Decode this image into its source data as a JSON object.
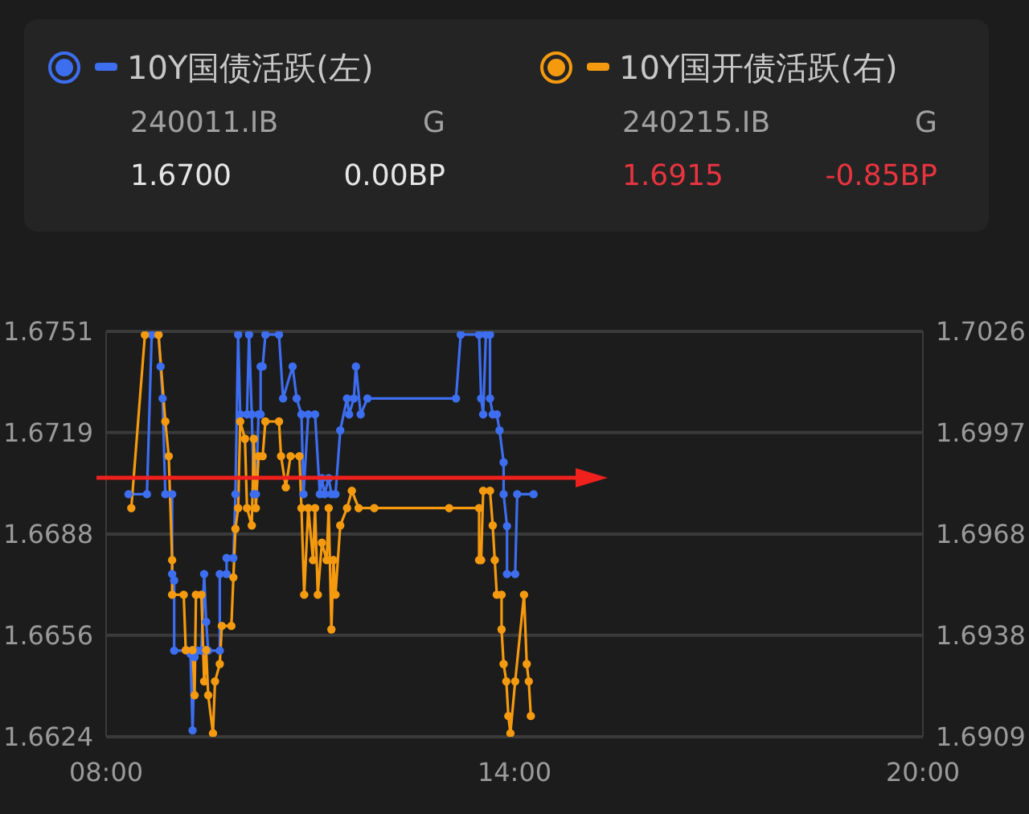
{
  "chart_data": {
    "type": "line",
    "legend": "top",
    "grid": "y",
    "marker": "circle",
    "line_style": "solid",
    "annotations": [
      "240011.IB",
      "G",
      "1.6700",
      "0.00BP",
      "240215.IB",
      "G",
      "1.6915",
      "-0.85BP"
    ],
    "xlim": [
      8,
      20
    ],
    "xticks": [
      {
        "value": 8,
        "label": "08:00"
      },
      {
        "value": 14,
        "label": "14:00"
      },
      {
        "value": 20,
        "label": "20:00"
      }
    ],
    "ylim": [
      1.6624,
      1.6751
    ],
    "yticks": [
      1.6624,
      {
        "value": 1.66558,
        "label": "1.6656"
      },
      {
        "value": 1.66875,
        "label": "1.6688"
      },
      {
        "value": 1.67193,
        "label": "1.6719"
      },
      1.6751
    ],
    "y2lim": [
      1.6909,
      1.7026
    ],
    "y2ticks": [
      1.6909,
      {
        "value": 1.69383,
        "label": "1.6938"
      },
      {
        "value": 1.69675,
        "label": "1.6968"
      },
      {
        "value": 1.69968,
        "label": "1.6997"
      },
      1.7026
    ],
    "series": [
      {
        "name": "10Y国债活跃(左)",
        "color": "#3d6ef0",
        "x": [
          8.33,
          8.6,
          8.67,
          8.77,
          8.8,
          8.83,
          8.87,
          8.97,
          8.97,
          9.0,
          9.0,
          9.2,
          9.24,
          9.27,
          9.3,
          9.34,
          9.4,
          9.44,
          9.47,
          9.5,
          9.67,
          9.67,
          9.77,
          9.77,
          9.87,
          9.9,
          9.94,
          9.97,
          10.07,
          10.1,
          10.14,
          10.17,
          10.2,
          10.24,
          10.27,
          10.27,
          10.3,
          10.34,
          10.54,
          10.6,
          10.74,
          10.8,
          10.87,
          10.9,
          10.97,
          11.07,
          11.14,
          11.17,
          11.21,
          11.27,
          11.31,
          11.37,
          11.44,
          11.54,
          11.57,
          11.64,
          11.67,
          11.74,
          11.84,
          13.14,
          13.21,
          13.48,
          13.51,
          13.54,
          13.58,
          13.64,
          13.64,
          13.68,
          13.74,
          13.78,
          13.84,
          13.84,
          13.89,
          13.89,
          14.01,
          14.04,
          14.28
        ],
        "values": [
          1.67,
          1.67,
          1.675,
          1.675,
          1.674,
          1.673,
          1.67,
          1.67,
          1.6675,
          1.6673,
          1.6651,
          1.6651,
          1.665,
          1.6626,
          1.6649,
          1.6651,
          1.6651,
          1.6675,
          1.666,
          1.6651,
          1.6651,
          1.6675,
          1.6675,
          1.668,
          1.668,
          1.67,
          1.675,
          1.6725,
          1.6725,
          1.675,
          1.6725,
          1.67,
          1.67,
          1.6725,
          1.6725,
          1.674,
          1.674,
          1.675,
          1.675,
          1.673,
          1.674,
          1.673,
          1.6725,
          1.67,
          1.6725,
          1.6725,
          1.67,
          1.6705,
          1.67,
          1.6705,
          1.67,
          1.67,
          1.672,
          1.673,
          1.6725,
          1.673,
          1.674,
          1.6725,
          1.673,
          1.673,
          1.675,
          1.675,
          1.673,
          1.6725,
          1.675,
          1.675,
          1.673,
          1.6725,
          1.6725,
          1.672,
          1.671,
          1.67,
          1.669,
          1.6675,
          1.6675,
          1.67,
          1.67
        ]
      },
      {
        "name": "10Y国开债活跃(右)",
        "color": "#f59a0f",
        "axis": "y2",
        "x": [
          8.37,
          8.57,
          8.77,
          8.87,
          8.92,
          8.97,
          8.97,
          9.14,
          9.17,
          9.27,
          9.3,
          9.32,
          9.4,
          9.44,
          9.47,
          9.5,
          9.57,
          9.6,
          9.67,
          9.7,
          9.84,
          9.87,
          9.9,
          9.94,
          9.97,
          10.04,
          10.07,
          10.14,
          10.17,
          10.2,
          10.24,
          10.3,
          10.34,
          10.54,
          10.57,
          10.64,
          10.71,
          10.84,
          10.87,
          10.91,
          10.97,
          11.04,
          11.07,
          11.11,
          11.17,
          11.24,
          11.27,
          11.31,
          11.34,
          11.37,
          11.44,
          11.54,
          11.61,
          11.71,
          11.94,
          13.04,
          13.48,
          13.48,
          13.51,
          13.54,
          13.64,
          13.68,
          13.71,
          13.74,
          13.81,
          13.81,
          13.84,
          13.88,
          13.91,
          13.94,
          14.01,
          14.14,
          14.18,
          14.21,
          14.24
        ],
        "values": [
          1.6975,
          1.7025,
          1.7025,
          1.7,
          1.699,
          1.696,
          1.695,
          1.695,
          1.6934,
          1.6934,
          1.6921,
          1.695,
          1.695,
          1.6925,
          1.6934,
          1.6921,
          1.691,
          1.6925,
          1.693,
          1.6941,
          1.6941,
          1.6955,
          1.6969,
          1.6975,
          1.7,
          1.6995,
          1.6975,
          1.697,
          1.6995,
          1.6975,
          1.699,
          1.699,
          1.7,
          1.7,
          1.699,
          1.6981,
          1.699,
          1.699,
          1.6975,
          1.695,
          1.6975,
          1.696,
          1.6975,
          1.695,
          1.6965,
          1.696,
          1.6975,
          1.694,
          1.696,
          1.695,
          1.697,
          1.6975,
          1.698,
          1.6975,
          1.6975,
          1.6975,
          1.6975,
          1.696,
          1.696,
          1.698,
          1.698,
          1.697,
          1.696,
          1.695,
          1.695,
          1.694,
          1.693,
          1.6925,
          1.6915,
          1.691,
          1.6925,
          1.695,
          1.693,
          1.6925,
          1.6915
        ]
      }
    ]
  }
}
